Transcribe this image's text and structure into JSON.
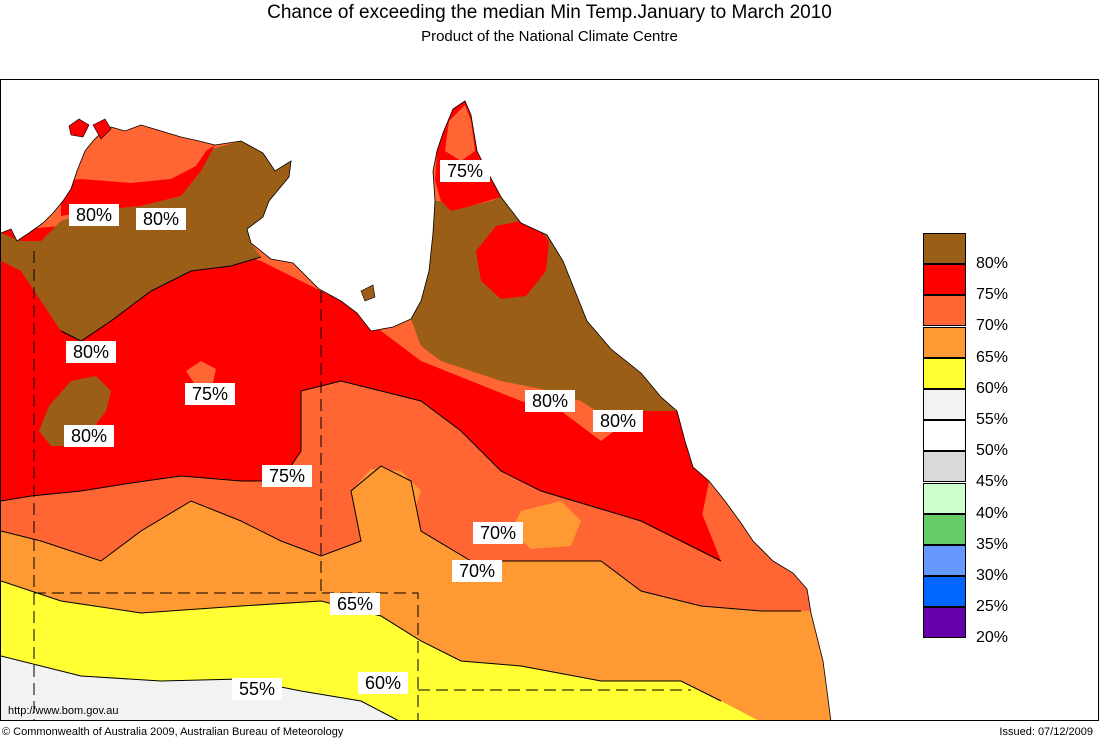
{
  "header": {
    "title": "Chance of exceeding the median Min Temp.January to March 2010",
    "subtitle": "Product of the National Climate Centre"
  },
  "colors": {
    "c80": "#9a5e17",
    "c75": "#ff0000",
    "c70": "#ff6633",
    "c65": "#ff9933",
    "c60": "#ffff33",
    "c55": "#f2f2f2",
    "c50": "#ffffff",
    "c45": "#d9d9d9",
    "c40": "#ccffcc",
    "c35": "#66cc66",
    "c30": "#6699ff",
    "c25": "#0066ff",
    "c20": "#6600aa"
  },
  "map_labels": [
    {
      "text": "80%"
    },
    {
      "text": "80%"
    },
    {
      "text": "80%"
    },
    {
      "text": "75%"
    },
    {
      "text": "80%"
    },
    {
      "text": "75%"
    },
    {
      "text": "75%"
    },
    {
      "text": "80%"
    },
    {
      "text": "80%"
    },
    {
      "text": "70%"
    },
    {
      "text": "70%"
    },
    {
      "text": "65%"
    },
    {
      "text": "60%"
    },
    {
      "text": "55%"
    }
  ],
  "legend": [
    {
      "label": "80%",
      "color": "#9a5e17"
    },
    {
      "label": "75%",
      "color": "#ff0000"
    },
    {
      "label": "70%",
      "color": "#ff6633"
    },
    {
      "label": "65%",
      "color": "#ff9933"
    },
    {
      "label": "60%",
      "color": "#ffff33"
    },
    {
      "label": "55%",
      "color": "#f2f2f2"
    },
    {
      "label": "50%",
      "color": "#ffffff"
    },
    {
      "label": "45%",
      "color": "#d9d9d9"
    },
    {
      "label": "40%",
      "color": "#ccffcc"
    },
    {
      "label": "35%",
      "color": "#66cc66"
    },
    {
      "label": "30%",
      "color": "#6699ff"
    },
    {
      "label": "25%",
      "color": "#0066ff"
    },
    {
      "label": "20%",
      "color": "#6600aa"
    }
  ],
  "footer": {
    "url": "http://www.bom.gov.au",
    "copyright": "© Commonwealth of Australia 2009, Australian Bureau of Meteorology",
    "issued": "Issued: 07/12/2009"
  }
}
